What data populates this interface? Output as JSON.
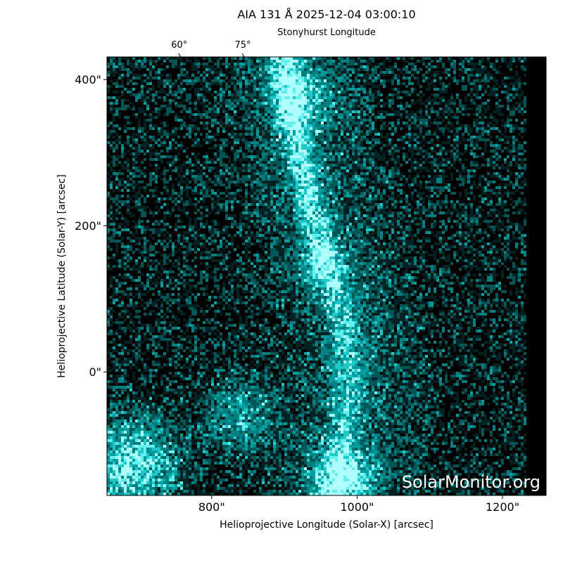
{
  "chart_data": {
    "type": "image",
    "title": "AIA 131 Å 2025-12-04 03:00:10",
    "top_axis_label": "Stonyhurst Longitude",
    "xlabel": "Helioprojective Longitude (Solar-X) [arcsec]",
    "ylabel": "Helioprojective Latitude (Solar-Y) [arcsec]",
    "watermark": "SolarMonitor.org",
    "xlim": [
      656,
      1260
    ],
    "ylim": [
      -169,
      431
    ],
    "xticks": [
      {
        "value": 800,
        "label": "800\""
      },
      {
        "value": 1000,
        "label": "1000\""
      },
      {
        "value": 1200,
        "label": "1200\""
      }
    ],
    "yticks": [
      {
        "value": 0,
        "label": "0\""
      },
      {
        "value": 200,
        "label": "200\""
      },
      {
        "value": 400,
        "label": "400\""
      }
    ],
    "x2ticks": [
      {
        "value": 60,
        "label": "60°"
      },
      {
        "value": 75,
        "label": "75°"
      }
    ]
  }
}
